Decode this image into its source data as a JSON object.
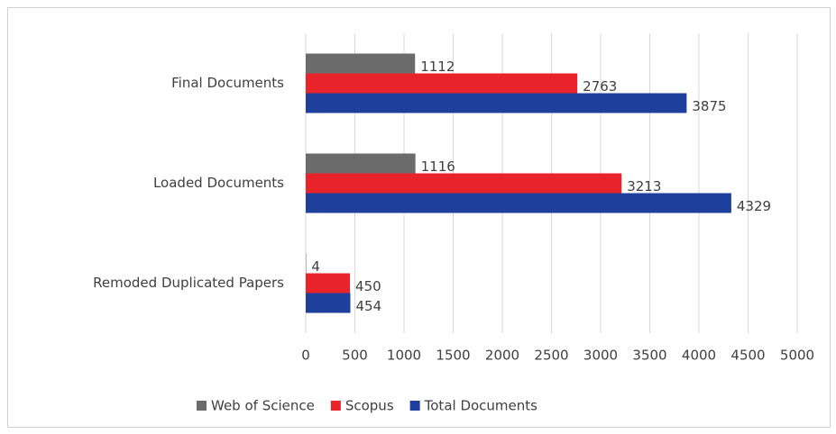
{
  "chart_data": {
    "type": "bar",
    "orientation": "horizontal",
    "categories": [
      "Final Documents",
      "Loaded Documents",
      "Remoded Duplicated Papers"
    ],
    "series": [
      {
        "name": "Web of Science",
        "color": "#6b6b6b",
        "values": [
          1112,
          1116,
          4
        ]
      },
      {
        "name": "Scopus",
        "color": "#e8232a",
        "values": [
          2763,
          3213,
          450
        ]
      },
      {
        "name": "Total Documents",
        "color": "#1f3f9c",
        "values": [
          3875,
          4329,
          454
        ]
      }
    ],
    "xlim": [
      0,
      5000
    ],
    "xticks": [
      0,
      500,
      1000,
      1500,
      2000,
      2500,
      3000,
      3500,
      4000,
      4500,
      5000
    ],
    "grid": true,
    "legend": "bottom"
  }
}
